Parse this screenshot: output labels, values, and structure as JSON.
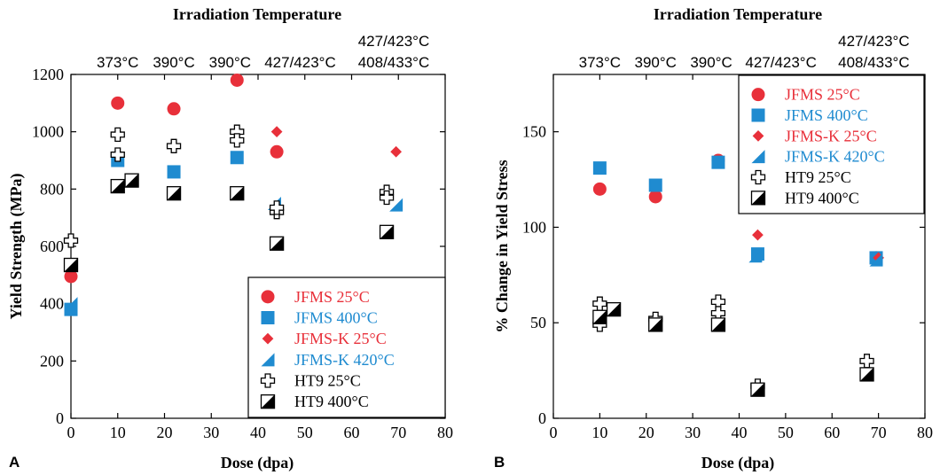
{
  "chart_data": [
    {
      "type": "scatter",
      "panel_label": "A",
      "top_title": "Irradiation Temperature",
      "top_labels": [
        {
          "x": 10,
          "lines": [
            "373°C"
          ]
        },
        {
          "x": 22,
          "lines": [
            "390°C"
          ]
        },
        {
          "x": 34,
          "lines": [
            "390°C"
          ]
        },
        {
          "x": 49,
          "lines": [
            "427/423°C"
          ]
        },
        {
          "x": 69,
          "lines": [
            "427/423°C",
            "408/433°C"
          ]
        }
      ],
      "xlabel": "Dose (dpa)",
      "ylabel": "Yield Strength (MPa)",
      "xlim": [
        0,
        80
      ],
      "ylim": [
        0,
        1200
      ],
      "xticks": [
        0,
        10,
        20,
        30,
        40,
        50,
        60,
        70,
        80
      ],
      "yticks": [
        0,
        200,
        400,
        600,
        800,
        1000,
        1200
      ],
      "legend_position": "bottom-right",
      "series": [
        {
          "name": "JFMS 25°C",
          "marker": "circle",
          "color": "#e8303a",
          "points": [
            [
              0,
              495
            ],
            [
              10,
              1100
            ],
            [
              22,
              1080
            ],
            [
              35.5,
              1180
            ],
            [
              44,
              930
            ]
          ]
        },
        {
          "name": "JFMS 400°C",
          "marker": "square",
          "color": "#1f8bd0",
          "points": [
            [
              0,
              380
            ],
            [
              10,
              900
            ],
            [
              22,
              860
            ],
            [
              35.5,
              910
            ]
          ]
        },
        {
          "name": "JFMS-K 25°C",
          "marker": "diamond",
          "color": "#e8303a",
          "points": [
            [
              44,
              1000
            ],
            [
              69.5,
              930
            ]
          ]
        },
        {
          "name": "JFMS-K 420°C",
          "marker": "triangle",
          "color": "#1f8bd0",
          "points": [
            [
              0,
              400
            ],
            [
              43.5,
              750
            ],
            [
              69.5,
              745
            ]
          ]
        },
        {
          "name": "HT9 25°C",
          "marker": "cross",
          "color": "#000000",
          "points": [
            [
              0,
              620
            ],
            [
              10,
              990
            ],
            [
              10,
              920
            ],
            [
              22,
              950
            ],
            [
              35.5,
              1000
            ],
            [
              35.5,
              970
            ],
            [
              44,
              720
            ],
            [
              44,
              735
            ],
            [
              67.5,
              790
            ],
            [
              67.5,
              770
            ]
          ]
        },
        {
          "name": "HT9 400°C",
          "marker": "halfsquare",
          "color": "#000000",
          "points": [
            [
              0,
              535
            ],
            [
              10,
              810
            ],
            [
              13,
              830
            ],
            [
              22,
              785
            ],
            [
              35.5,
              785
            ],
            [
              44,
              610
            ],
            [
              67.5,
              650
            ]
          ]
        }
      ]
    },
    {
      "type": "scatter",
      "panel_label": "B",
      "top_title": "Irradiation Temperature",
      "top_labels": [
        {
          "x": 10,
          "lines": [
            "373°C"
          ]
        },
        {
          "x": 22,
          "lines": [
            "390°C"
          ]
        },
        {
          "x": 34,
          "lines": [
            "390°C"
          ]
        },
        {
          "x": 49,
          "lines": [
            "427/423°C"
          ]
        },
        {
          "x": 69,
          "lines": [
            "427/423°C",
            "408/433°C"
          ]
        }
      ],
      "xlabel": "Dose (dpa)",
      "ylabel": "% Change in Yield Stress",
      "xlim": [
        0,
        80
      ],
      "ylim": [
        0,
        180
      ],
      "xticks": [
        0,
        10,
        20,
        30,
        40,
        50,
        60,
        70,
        80
      ],
      "yticks": [
        0,
        50,
        100,
        150
      ],
      "legend_position": "top-right",
      "series": [
        {
          "name": "JFMS 25°C",
          "marker": "circle",
          "color": "#e8303a",
          "points": [
            [
              10,
              120
            ],
            [
              22,
              116
            ],
            [
              35.5,
              135
            ],
            [
              69.5,
              84
            ]
          ]
        },
        {
          "name": "JFMS 400°C",
          "marker": "square",
          "color": "#1f8bd0",
          "points": [
            [
              10,
              131
            ],
            [
              22,
              122
            ],
            [
              35.5,
              134
            ],
            [
              44,
              86
            ],
            [
              69.5,
              84
            ]
          ]
        },
        {
          "name": "JFMS-K 25°C",
          "marker": "diamond",
          "color": "#e8303a",
          "points": [
            [
              44,
              96
            ],
            [
              70,
              84
            ]
          ]
        },
        {
          "name": "JFMS-K 420°C",
          "marker": "triangle",
          "color": "#1f8bd0",
          "points": [
            [
              43.5,
              85
            ],
            [
              69.5,
              83
            ]
          ]
        },
        {
          "name": "HT9 25°C",
          "marker": "cross",
          "color": "#000000",
          "points": [
            [
              10,
              60
            ],
            [
              10,
              49
            ],
            [
              22,
              52
            ],
            [
              35.5,
              61
            ],
            [
              35.5,
              55
            ],
            [
              44,
              17
            ],
            [
              67.5,
              30
            ]
          ]
        },
        {
          "name": "HT9 400°C",
          "marker": "halfsquare",
          "color": "#000000",
          "points": [
            [
              10,
              53
            ],
            [
              13,
              57
            ],
            [
              22,
              49
            ],
            [
              35.5,
              49
            ],
            [
              44,
              15
            ],
            [
              67.5,
              23
            ]
          ]
        }
      ]
    }
  ]
}
